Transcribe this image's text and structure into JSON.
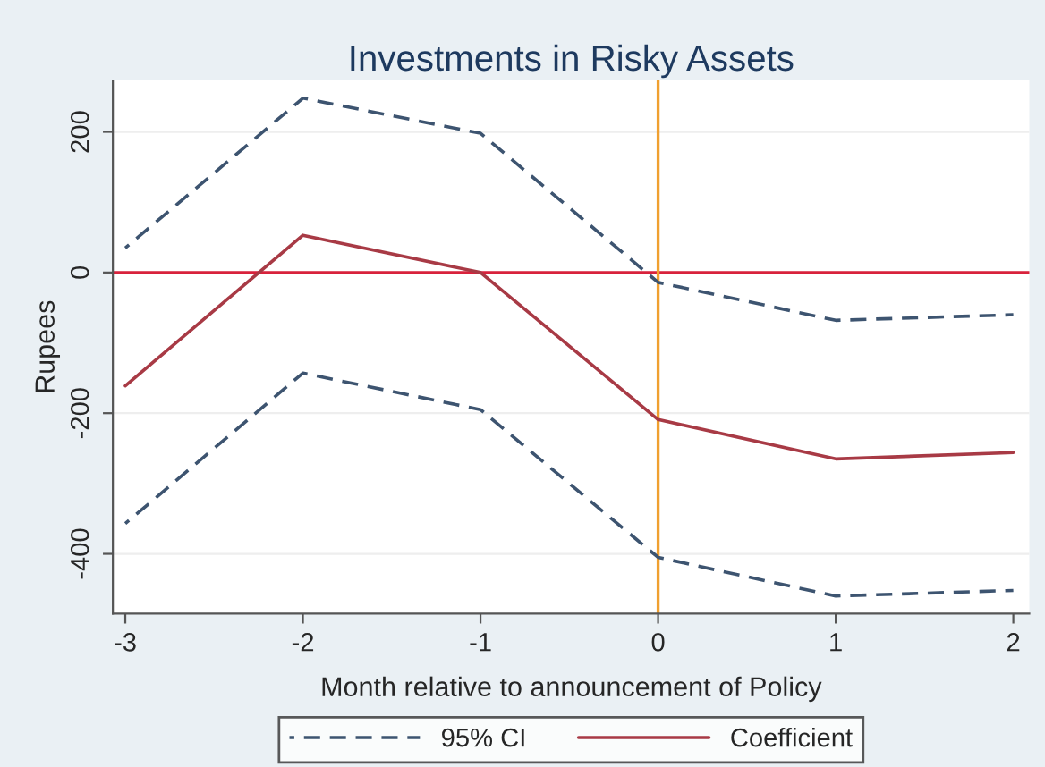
{
  "chart_data": {
    "type": "line",
    "title": "Investments in Risky Assets",
    "xlabel": "Month relative to announcement of Policy",
    "ylabel": "Rupees",
    "x": [
      -3,
      -2,
      -1,
      0,
      1,
      2
    ],
    "series": [
      {
        "name": "95% CI",
        "color": "#3d5470",
        "line_style": "dashed",
        "values": [
          35,
          248,
          198,
          -14,
          -68,
          -60
        ]
      },
      {
        "color": "#3d5470",
        "line_style": "dashed",
        "values": [
          -357,
          -143,
          -195,
          -405,
          -460,
          -452
        ]
      },
      {
        "name": "Coefficient",
        "color": "#a83a45",
        "line_style": "solid",
        "values": [
          -161,
          53,
          0,
          -209,
          -265,
          -256
        ]
      }
    ],
    "xlim": [
      -3.07,
      2.09
    ],
    "ylim": [
      -485,
      273
    ],
    "xticks": [
      -3,
      -2,
      -1,
      0,
      1,
      2
    ],
    "yticks": [
      -400,
      -200,
      0,
      200
    ],
    "ref_lines": [
      {
        "axis": "y",
        "value": 0,
        "color": "#d8223c"
      },
      {
        "axis": "x",
        "value": 0,
        "color": "#f0a030"
      }
    ],
    "grid": "y",
    "legend": "bottom",
    "marker": "none"
  }
}
